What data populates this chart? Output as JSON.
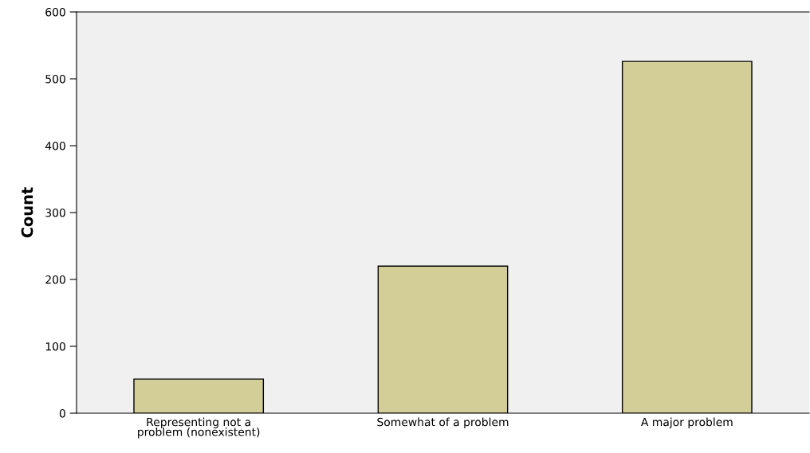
{
  "chart_data": {
    "type": "bar",
    "ylabel": "Count",
    "categories": [
      "Representing not a\nproblem (nonexistent)",
      "Somewhat of a problem",
      "A major problem"
    ],
    "values": [
      51,
      220,
      526
    ],
    "color": "#d3ce97",
    "ylim": [
      0,
      600
    ],
    "yticks": [
      0,
      100,
      200,
      300,
      400,
      500,
      600
    ],
    "grid": false
  }
}
